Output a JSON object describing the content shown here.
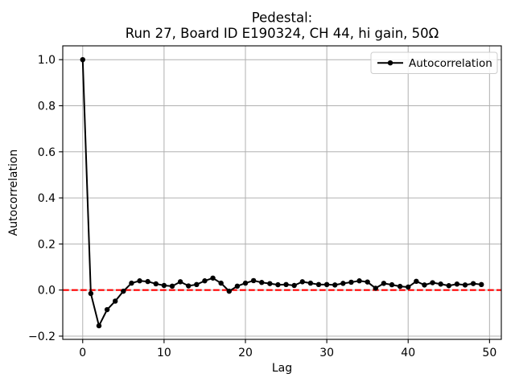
{
  "chart_data": {
    "type": "line",
    "title": "Pedestal:\nRun 27, Board ID E190324, CH 44, hi gain, 50Ω",
    "title_lines": [
      "Pedestal:",
      "Run 27, Board ID E190324, CH 44, hi gain, 50Ω"
    ],
    "xlabel": "Lag",
    "ylabel": "Autocorrelation",
    "legend": {
      "position": "upper right",
      "entries": [
        "Autocorrelation"
      ]
    },
    "x": [
      0,
      1,
      2,
      3,
      4,
      5,
      6,
      7,
      8,
      9,
      10,
      11,
      12,
      13,
      14,
      15,
      16,
      17,
      18,
      19,
      20,
      21,
      22,
      23,
      24,
      25,
      26,
      27,
      28,
      29,
      30,
      31,
      32,
      33,
      34,
      35,
      36,
      37,
      38,
      39,
      40,
      41,
      42,
      43,
      44,
      45,
      46,
      47,
      48,
      49
    ],
    "series": [
      {
        "name": "Autocorrelation",
        "color": "#000000",
        "marker": "dot",
        "values": [
          1.0,
          -0.015,
          -0.155,
          -0.085,
          -0.048,
          -0.005,
          0.03,
          0.04,
          0.037,
          0.027,
          0.02,
          0.017,
          0.036,
          0.018,
          0.024,
          0.04,
          0.052,
          0.03,
          -0.005,
          0.017,
          0.03,
          0.041,
          0.033,
          0.028,
          0.023,
          0.024,
          0.02,
          0.036,
          0.03,
          0.024,
          0.024,
          0.022,
          0.029,
          0.034,
          0.04,
          0.035,
          0.008,
          0.029,
          0.023,
          0.016,
          0.013,
          0.038,
          0.022,
          0.032,
          0.026,
          0.019,
          0.026,
          0.022,
          0.028,
          0.024
        ]
      }
    ],
    "zero_line": {
      "y": 0,
      "color": "#ff0000",
      "style": "dashed"
    },
    "grid": true,
    "grid_color": "#b0b0b0",
    "xlim": [
      -2.45,
      51.45
    ],
    "ylim": [
      -0.214,
      1.06
    ],
    "x_ticks": [
      0,
      10,
      20,
      30,
      40,
      50
    ],
    "x_tick_labels": [
      "0",
      "10",
      "20",
      "30",
      "40",
      "50"
    ],
    "y_ticks": [
      -0.2,
      0.0,
      0.2,
      0.4,
      0.6,
      0.8,
      1.0
    ],
    "y_tick_labels": [
      "−0.2",
      "0.0",
      "0.2",
      "0.4",
      "0.6",
      "0.8",
      "1.0"
    ]
  }
}
